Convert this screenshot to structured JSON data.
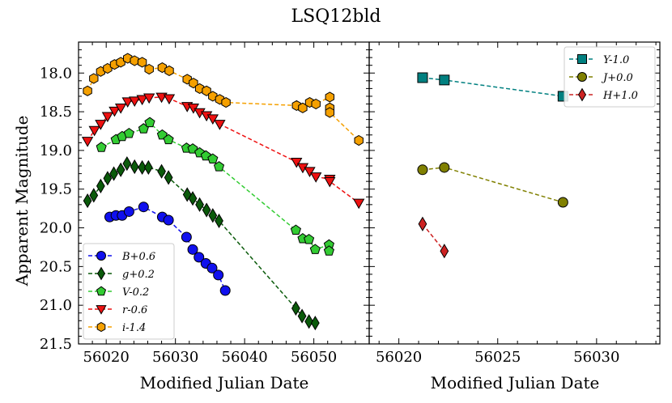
{
  "figure": {
    "title": "LSQ12bld",
    "ylabel": "Apparent Magnitude",
    "xlabel_left": "Modified Julian Date",
    "xlabel_right": "Modified Julian Date"
  },
  "chart_data": [
    {
      "type": "scatter",
      "panel": "left",
      "xlabel": "Modified Julian Date",
      "ylabel": "Apparent Magnitude",
      "xlim": [
        56016,
        56058
      ],
      "ylim": [
        21.5,
        17.6
      ],
      "y_inverted": true,
      "xticks": [
        56020,
        56030,
        56040,
        56050
      ],
      "yticks": [
        18.0,
        18.5,
        19.0,
        19.5,
        20.0,
        20.5,
        21.0,
        21.5
      ],
      "legend_position": "lower-left",
      "series": [
        {
          "name": "B+0.6",
          "color": "#1010ee",
          "marker": "circle",
          "x": [
            56020.5,
            56021.4,
            56022.3,
            56023.3,
            56025.4,
            56028.1,
            56029.0,
            56031.6,
            56032.5,
            56033.4,
            56034.4,
            56035.3,
            56036.2,
            56037.2
          ],
          "y": [
            19.86,
            19.84,
            19.84,
            19.79,
            19.73,
            19.86,
            19.9,
            20.12,
            20.28,
            20.38,
            20.46,
            20.52,
            20.61,
            20.81
          ]
        },
        {
          "name": "g+0.2",
          "color": "#0a5a0a",
          "marker": "diamond",
          "x": [
            56017.3,
            56018.2,
            56019.2,
            56020.2,
            56021.1,
            56022.1,
            56023.0,
            56024.1,
            56025.2,
            56026.1,
            56028.0,
            56029.0,
            56031.7,
            56032.5,
            56033.5,
            56034.5,
            56035.4,
            56036.3,
            56047.4,
            56048.3,
            56049.3,
            56050.2
          ],
          "y": [
            19.65,
            19.58,
            19.46,
            19.36,
            19.3,
            19.25,
            19.17,
            19.21,
            19.22,
            19.22,
            19.27,
            19.35,
            19.57,
            19.62,
            19.7,
            19.77,
            19.84,
            19.91,
            21.04,
            21.14,
            21.21,
            21.23
          ]
        },
        {
          "name": "V-0.2",
          "color": "#33cc33",
          "marker": "pentagon",
          "x": [
            56019.3,
            56021.4,
            56022.3,
            56023.3,
            56025.4,
            56026.3,
            56028.1,
            56029.0,
            56031.6,
            56032.5,
            56033.5,
            56034.4,
            56035.4,
            56036.3,
            56047.4,
            56048.4,
            56049.3,
            56050.2,
            56052.2,
            56052.2
          ],
          "y": [
            18.96,
            18.86,
            18.82,
            18.78,
            18.72,
            18.64,
            18.8,
            18.86,
            18.97,
            18.98,
            19.03,
            19.07,
            19.11,
            19.21,
            20.03,
            20.14,
            20.15,
            20.28,
            20.22,
            20.3
          ]
        },
        {
          "name": "r-0.6",
          "color": "#ee1111",
          "marker": "triangle-down",
          "x": [
            56017.3,
            56018.3,
            56019.2,
            56020.2,
            56021.2,
            56022.1,
            56023.1,
            56024.1,
            56025.2,
            56026.2,
            56028.0,
            56029.1,
            56031.7,
            56032.6,
            56033.5,
            56034.5,
            56035.4,
            56036.4,
            56047.5,
            56048.4,
            56049.4,
            56050.3,
            56052.3,
            56052.3,
            56056.5
          ],
          "y": [
            18.88,
            18.74,
            18.66,
            18.56,
            18.49,
            18.45,
            18.37,
            18.36,
            18.34,
            18.32,
            18.31,
            18.33,
            18.43,
            18.45,
            18.51,
            18.55,
            18.59,
            18.66,
            19.15,
            19.22,
            19.27,
            19.34,
            19.37,
            19.4,
            19.68
          ]
        },
        {
          "name": "i-1.4",
          "color": "#f5a000",
          "marker": "hexagon",
          "x": [
            56017.3,
            56018.2,
            56019.2,
            56020.2,
            56021.2,
            56022.1,
            56023.1,
            56024.1,
            56025.2,
            56026.2,
            56028.1,
            56029.1,
            56031.7,
            56032.6,
            56033.5,
            56034.5,
            56035.4,
            56036.4,
            56037.3,
            56047.5,
            56048.4,
            56049.4,
            56050.3,
            56052.3,
            56052.3,
            56052.3,
            56056.5
          ],
          "y": [
            18.23,
            18.07,
            17.98,
            17.94,
            17.89,
            17.86,
            17.81,
            17.84,
            17.86,
            17.95,
            17.93,
            17.97,
            18.08,
            18.13,
            18.2,
            18.23,
            18.3,
            18.34,
            18.38,
            18.42,
            18.45,
            18.38,
            18.4,
            18.31,
            18.45,
            18.51,
            18.87
          ]
        }
      ]
    },
    {
      "type": "scatter",
      "panel": "right",
      "xlabel": "Modified Julian Date",
      "xlim": [
        56018.5,
        56033.2
      ],
      "ylim": [
        21.5,
        17.6
      ],
      "y_inverted": true,
      "xticks": [
        56020,
        56025,
        56030
      ],
      "legend_position": "top-right",
      "series": [
        {
          "name": "Y-1.0",
          "color": "#008080",
          "marker": "square",
          "x": [
            56021.2,
            56022.3,
            56028.3
          ],
          "y": [
            18.06,
            18.09,
            18.3
          ]
        },
        {
          "name": "J+0.0",
          "color": "#808000",
          "marker": "circle",
          "x": [
            56021.2,
            56022.3,
            56028.3
          ],
          "y": [
            19.25,
            19.22,
            19.67
          ]
        },
        {
          "name": "H+1.0",
          "color": "#cc2222",
          "marker": "diamond",
          "x": [
            56021.2,
            56022.3
          ],
          "y": [
            19.95,
            20.3
          ]
        }
      ]
    }
  ]
}
